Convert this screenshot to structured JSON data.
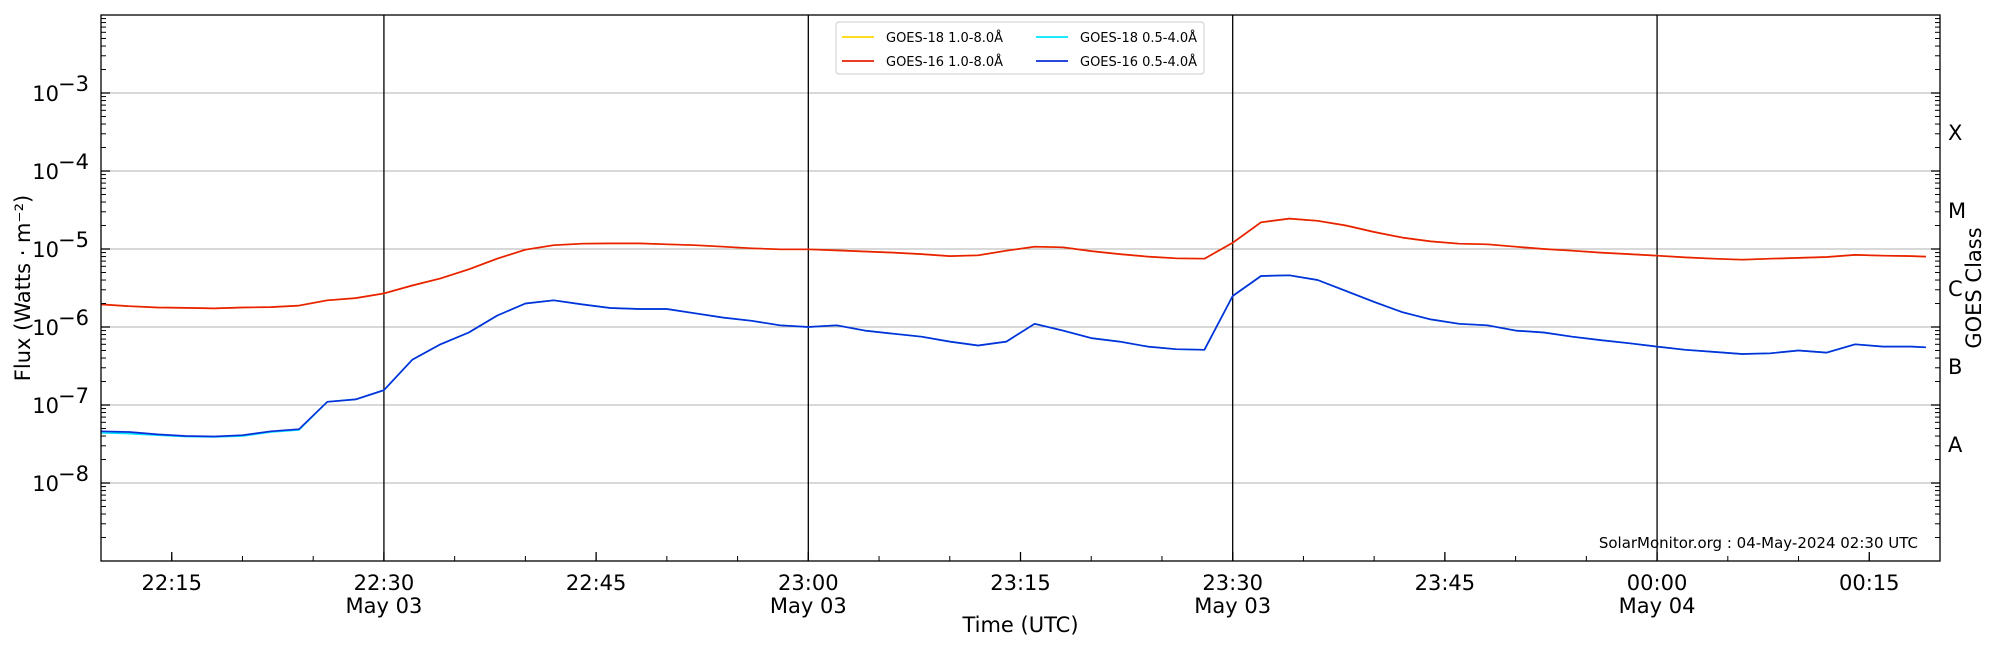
{
  "chart_data": {
    "type": "line",
    "xlabel": "Time (UTC)",
    "ylabel": "Flux (Watts · m⁻²)",
    "y2label": "GOES Class",
    "yscale": "log",
    "xlim": [
      "2024-05-03T22:10",
      "2024-05-04T00:20"
    ],
    "ylim": [
      1e-09,
      0.01
    ],
    "grid": "horizontal at decades, vertical lines every 30 min",
    "legend_position": "top-center",
    "watermark": "SolarMonitor.org : 04-May-2024 02:30 UTC",
    "x_ticks": [
      {
        "t": "2024-05-03T22:15",
        "time": "22:15",
        "date": ""
      },
      {
        "t": "2024-05-03T22:30",
        "time": "22:30",
        "date": "May 03"
      },
      {
        "t": "2024-05-03T22:45",
        "time": "22:45",
        "date": ""
      },
      {
        "t": "2024-05-03T23:00",
        "time": "23:00",
        "date": "May 03"
      },
      {
        "t": "2024-05-03T23:15",
        "time": "23:15",
        "date": ""
      },
      {
        "t": "2024-05-03T23:30",
        "time": "23:30",
        "date": "May 03"
      },
      {
        "t": "2024-05-03T23:45",
        "time": "23:45",
        "date": ""
      },
      {
        "t": "2024-05-04T00:00",
        "time": "00:00",
        "date": "May 04"
      },
      {
        "t": "2024-05-04T00:15",
        "time": "00:15",
        "date": ""
      }
    ],
    "vertical_lines": [
      "2024-05-03T22:30",
      "2024-05-03T23:00",
      "2024-05-03T23:30",
      "2024-05-04T00:00"
    ],
    "y_ticks": [
      {
        "value": 1e-08,
        "base": "10",
        "exp": "−8"
      },
      {
        "value": 1e-07,
        "base": "10",
        "exp": "−7"
      },
      {
        "value": 1e-06,
        "base": "10",
        "exp": "−6"
      },
      {
        "value": 1e-05,
        "base": "10",
        "exp": "−5"
      },
      {
        "value": 0.0001,
        "base": "10",
        "exp": "−4"
      },
      {
        "value": 0.001,
        "base": "10",
        "exp": "−3"
      }
    ],
    "goes_classes": [
      {
        "label": "A",
        "flux": 3.16e-08
      },
      {
        "label": "B",
        "flux": 3.16e-07
      },
      {
        "label": "C",
        "flux": 3.16e-06
      },
      {
        "label": "M",
        "flux": 3.16e-05
      },
      {
        "label": "X",
        "flux": 0.000316
      }
    ],
    "x": [
      "2024-05-03T22:10",
      "2024-05-03T22:12",
      "2024-05-03T22:14",
      "2024-05-03T22:16",
      "2024-05-03T22:18",
      "2024-05-03T22:20",
      "2024-05-03T22:22",
      "2024-05-03T22:24",
      "2024-05-03T22:26",
      "2024-05-03T22:28",
      "2024-05-03T22:30",
      "2024-05-03T22:32",
      "2024-05-03T22:34",
      "2024-05-03T22:36",
      "2024-05-03T22:38",
      "2024-05-03T22:40",
      "2024-05-03T22:42",
      "2024-05-03T22:44",
      "2024-05-03T22:46",
      "2024-05-03T22:48",
      "2024-05-03T22:50",
      "2024-05-03T22:52",
      "2024-05-03T22:54",
      "2024-05-03T22:56",
      "2024-05-03T22:58",
      "2024-05-03T23:00",
      "2024-05-03T23:02",
      "2024-05-03T23:04",
      "2024-05-03T23:06",
      "2024-05-03T23:08",
      "2024-05-03T23:10",
      "2024-05-03T23:12",
      "2024-05-03T23:14",
      "2024-05-03T23:16",
      "2024-05-03T23:18",
      "2024-05-03T23:20",
      "2024-05-03T23:22",
      "2024-05-03T23:24",
      "2024-05-03T23:26",
      "2024-05-03T23:28",
      "2024-05-03T23:30",
      "2024-05-03T23:32",
      "2024-05-03T23:34",
      "2024-05-03T23:36",
      "2024-05-03T23:38",
      "2024-05-03T23:40",
      "2024-05-03T23:42",
      "2024-05-03T23:44",
      "2024-05-03T23:46",
      "2024-05-03T23:48",
      "2024-05-03T23:50",
      "2024-05-03T23:52",
      "2024-05-03T23:54",
      "2024-05-03T23:56",
      "2024-05-03T23:58",
      "2024-05-04T00:00",
      "2024-05-04T00:02",
      "2024-05-04T00:04",
      "2024-05-04T00:06",
      "2024-05-04T00:08",
      "2024-05-04T00:10",
      "2024-05-04T00:12",
      "2024-05-04T00:14",
      "2024-05-04T00:16",
      "2024-05-04T00:18",
      "2024-05-04T00:19"
    ],
    "series": [
      {
        "name": "GOES-18 1.0-8.0Å",
        "color": "#ffd700",
        "values": [
          1.95e-06,
          1.85e-06,
          1.78e-06,
          1.76e-06,
          1.73e-06,
          1.78e-06,
          1.8e-06,
          1.88e-06,
          2.2e-06,
          2.35e-06,
          2.7e-06,
          3.4e-06,
          4.2e-06,
          5.5e-06,
          7.5e-06,
          9.8e-06,
          1.12e-05,
          1.17e-05,
          1.18e-05,
          1.18e-05,
          1.15e-05,
          1.12e-05,
          1.07e-05,
          1.02e-05,
          9.9e-06,
          9.9e-06,
          9.6e-06,
          9.3e-06,
          9e-06,
          8.6e-06,
          8.1e-06,
          8.3e-06,
          9.5e-06,
          1.07e-05,
          1.05e-05,
          9.4e-06,
          8.6e-06,
          8e-06,
          7.6e-06,
          7.5e-06,
          1.2e-05,
          2.2e-05,
          2.45e-05,
          2.3e-05,
          2e-05,
          1.65e-05,
          1.4e-05,
          1.25e-05,
          1.17e-05,
          1.15e-05,
          1.07e-05,
          1e-05,
          9.5e-06,
          9e-06,
          8.6e-06,
          8.2e-06,
          7.8e-06,
          7.5e-06,
          7.3e-06,
          7.5e-06,
          7.7e-06,
          7.9e-06,
          8.4e-06,
          8.2e-06,
          8.1e-06,
          8e-06
        ]
      },
      {
        "name": "GOES-16 1.0-8.0Å",
        "color": "#e8200a",
        "values": [
          1.95e-06,
          1.85e-06,
          1.78e-06,
          1.76e-06,
          1.73e-06,
          1.78e-06,
          1.8e-06,
          1.88e-06,
          2.2e-06,
          2.35e-06,
          2.7e-06,
          3.4e-06,
          4.2e-06,
          5.5e-06,
          7.5e-06,
          9.8e-06,
          1.12e-05,
          1.17e-05,
          1.18e-05,
          1.18e-05,
          1.15e-05,
          1.12e-05,
          1.07e-05,
          1.02e-05,
          9.9e-06,
          9.9e-06,
          9.6e-06,
          9.3e-06,
          9e-06,
          8.6e-06,
          8.1e-06,
          8.3e-06,
          9.5e-06,
          1.07e-05,
          1.05e-05,
          9.4e-06,
          8.6e-06,
          8e-06,
          7.6e-06,
          7.5e-06,
          1.2e-05,
          2.2e-05,
          2.45e-05,
          2.3e-05,
          2e-05,
          1.65e-05,
          1.4e-05,
          1.25e-05,
          1.17e-05,
          1.15e-05,
          1.07e-05,
          1e-05,
          9.5e-06,
          9e-06,
          8.6e-06,
          8.2e-06,
          7.8e-06,
          7.5e-06,
          7.3e-06,
          7.5e-06,
          7.7e-06,
          7.9e-06,
          8.4e-06,
          8.2e-06,
          8.1e-06,
          8e-06
        ]
      },
      {
        "name": "GOES-18 0.5-4.0Å",
        "color": "#00e5ff",
        "values": [
          4.4e-08,
          4.3e-08,
          4.1e-08,
          3.95e-08,
          3.9e-08,
          4e-08,
          4.5e-08,
          4.8e-08,
          1.1e-07,
          1.18e-07,
          1.55e-07,
          3.8e-07,
          6e-07,
          8.5e-07,
          1.4e-06,
          2e-06,
          2.2e-06,
          1.95e-06,
          1.75e-06,
          1.7e-06,
          1.7e-06,
          1.5e-06,
          1.32e-06,
          1.2e-06,
          1.05e-06,
          1e-06,
          1.05e-06,
          9e-07,
          8.2e-07,
          7.5e-07,
          6.5e-07,
          5.8e-07,
          6.5e-07,
          1.1e-06,
          9e-07,
          7.2e-07,
          6.5e-07,
          5.6e-07,
          5.2e-07,
          5.1e-07,
          2.5e-06,
          4.5e-06,
          4.6e-06,
          4e-06,
          2.9e-06,
          2.1e-06,
          1.55e-06,
          1.25e-06,
          1.1e-06,
          1.05e-06,
          9e-07,
          8.5e-07,
          7.5e-07,
          6.8e-07,
          6.2e-07,
          5.6e-07,
          5.1e-07,
          4.8e-07,
          4.5e-07,
          4.6e-07,
          5e-07,
          4.7e-07,
          6e-07,
          5.6e-07,
          5.6e-07,
          5.5e-07
        ]
      },
      {
        "name": "GOES-16 0.5-4.0Å",
        "color": "#0a2fd9",
        "values": [
          4.6e-08,
          4.5e-08,
          4.2e-08,
          4e-08,
          3.95e-08,
          4.1e-08,
          4.6e-08,
          4.9e-08,
          1.1e-07,
          1.18e-07,
          1.55e-07,
          3.8e-07,
          6e-07,
          8.5e-07,
          1.4e-06,
          2e-06,
          2.2e-06,
          1.95e-06,
          1.75e-06,
          1.7e-06,
          1.7e-06,
          1.5e-06,
          1.32e-06,
          1.2e-06,
          1.05e-06,
          1e-06,
          1.05e-06,
          9e-07,
          8.2e-07,
          7.5e-07,
          6.5e-07,
          5.8e-07,
          6.5e-07,
          1.1e-06,
          9e-07,
          7.2e-07,
          6.5e-07,
          5.6e-07,
          5.2e-07,
          5.1e-07,
          2.5e-06,
          4.5e-06,
          4.6e-06,
          4e-06,
          2.9e-06,
          2.1e-06,
          1.55e-06,
          1.25e-06,
          1.1e-06,
          1.05e-06,
          9e-07,
          8.5e-07,
          7.5e-07,
          6.8e-07,
          6.2e-07,
          5.6e-07,
          5.1e-07,
          4.8e-07,
          4.5e-07,
          4.6e-07,
          5e-07,
          4.7e-07,
          6e-07,
          5.6e-07,
          5.6e-07,
          5.5e-07
        ]
      }
    ],
    "legend_order": [
      0,
      2,
      1,
      3
    ]
  }
}
